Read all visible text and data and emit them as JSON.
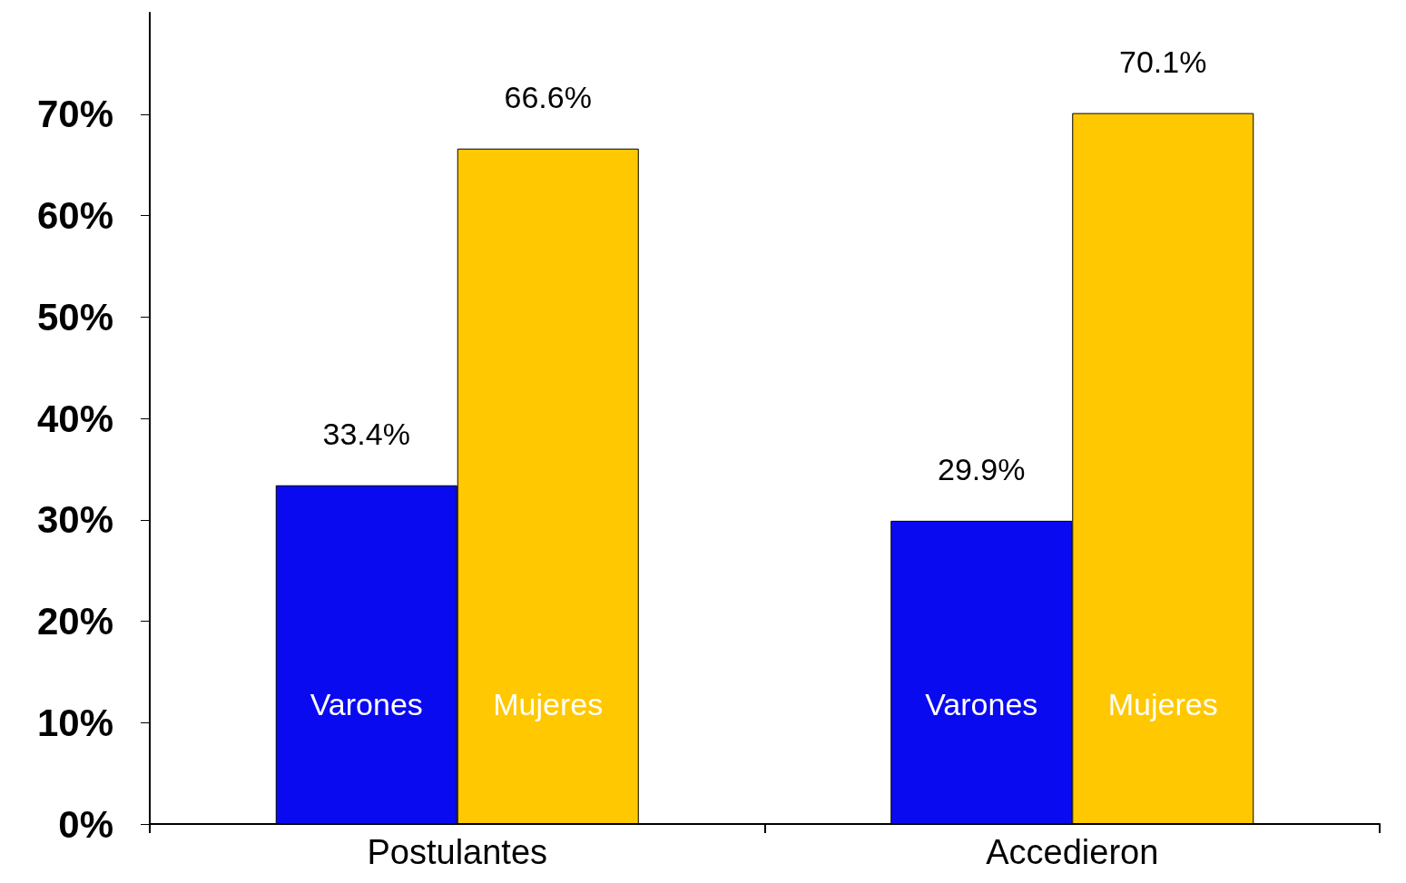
{
  "chart_data": {
    "type": "bar",
    "categories": [
      "Postulantes",
      "Accedieron"
    ],
    "series": [
      {
        "name": "Varones",
        "color": "#0a0af0",
        "values": [
          33.4,
          29.9
        ],
        "value_labels": [
          "33.4%",
          "29.9%"
        ]
      },
      {
        "name": "Mujeres",
        "color": "#ffc800",
        "values": [
          66.6,
          70.1
        ],
        "value_labels": [
          "66.6%",
          "70.1%"
        ]
      }
    ],
    "ylim": [
      0,
      80
    ],
    "yticks": [
      {
        "value": 0,
        "label": "0%"
      },
      {
        "value": 10,
        "label": "10%"
      },
      {
        "value": 20,
        "label": "20%"
      },
      {
        "value": 30,
        "label": "30%"
      },
      {
        "value": 40,
        "label": "40%"
      },
      {
        "value": 50,
        "label": "50%"
      },
      {
        "value": 60,
        "label": "60%"
      },
      {
        "value": 70,
        "label": "70%"
      }
    ],
    "grid": false,
    "legend": false
  }
}
